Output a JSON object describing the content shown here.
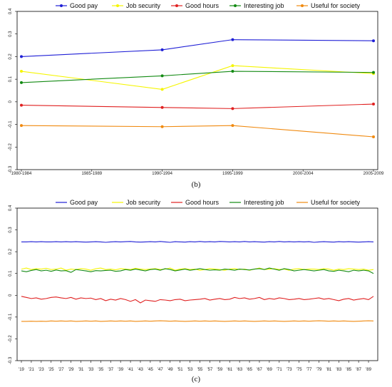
{
  "chart_data": [
    {
      "type": "line",
      "caption": "(b)",
      "categories": [
        "1980-1984",
        "1985-1989",
        "1990-1994",
        "1995-1999",
        "2000-2004",
        "2005-2009"
      ],
      "yticks": [
        "0.4",
        "0.3",
        "0.2",
        "0.1",
        "0",
        "-0.1",
        "-0.2",
        "-0.3"
      ],
      "ylim": [
        -0.3,
        0.4
      ],
      "grid": false,
      "legend": "top",
      "series": [
        {
          "name": "Good pay",
          "color": "#1f1fd6",
          "x": [
            "1980-1984",
            "1990-1994",
            "1995-1999",
            "2005-2009"
          ],
          "values": [
            0.2,
            0.23,
            0.275,
            0.27
          ]
        },
        {
          "name": "Job security",
          "color": "#f5f500",
          "x": [
            "1980-1984",
            "1990-1994",
            "1995-1999",
            "2005-2009"
          ],
          "values": [
            0.135,
            0.055,
            0.16,
            0.125
          ]
        },
        {
          "name": "Good hours",
          "color": "#e02020",
          "x": [
            "1980-1984",
            "1990-1994",
            "1995-1999",
            "2005-2009"
          ],
          "values": [
            -0.015,
            -0.025,
            -0.03,
            -0.01
          ]
        },
        {
          "name": "Interesting job",
          "color": "#138a13",
          "x": [
            "1980-1984",
            "1990-1994",
            "1995-1999",
            "2005-2009"
          ],
          "values": [
            0.085,
            0.115,
            0.135,
            0.13
          ]
        },
        {
          "name": "Useful for society",
          "color": "#f08a10",
          "x": [
            "1980-1984",
            "1990-1994",
            "1995-1999",
            "2005-2009"
          ],
          "values": [
            -0.105,
            -0.11,
            -0.105,
            -0.155
          ]
        }
      ]
    },
    {
      "type": "line",
      "caption": "(c)",
      "categories": [
        "'19",
        "'21",
        "'23",
        "'25",
        "'27",
        "'29",
        "'31",
        "'33",
        "'35",
        "'37",
        "'39",
        "'41",
        "'43",
        "'45",
        "'47",
        "'49",
        "'51",
        "'53",
        "'55",
        "'57",
        "'59",
        "'61",
        "'63",
        "'65",
        "'67",
        "'69",
        "'71",
        "'73",
        "'75",
        "'77",
        "'79",
        "'81",
        "'83",
        "'85",
        "'87",
        "'89"
      ],
      "x": [
        1919,
        1920,
        1921,
        1922,
        1923,
        1924,
        1925,
        1926,
        1927,
        1928,
        1929,
        1930,
        1931,
        1932,
        1933,
        1934,
        1935,
        1936,
        1937,
        1938,
        1939,
        1940,
        1941,
        1942,
        1943,
        1944,
        1945,
        1946,
        1947,
        1948,
        1949,
        1950,
        1951,
        1952,
        1953,
        1954,
        1955,
        1956,
        1957,
        1958,
        1959,
        1960,
        1961,
        1962,
        1963,
        1964,
        1965,
        1966,
        1967,
        1968,
        1969,
        1970,
        1971,
        1972,
        1973,
        1974,
        1975,
        1976,
        1977,
        1978,
        1979,
        1980,
        1981,
        1982,
        1983,
        1984,
        1985,
        1986,
        1987,
        1988,
        1989,
        1990
      ],
      "yticks": [
        "0.4",
        "0.3",
        "0.2",
        "0.1",
        "0",
        "-0.1",
        "-0.2",
        "-0.3"
      ],
      "ylim": [
        -0.3,
        0.4
      ],
      "grid": false,
      "legend": "top",
      "series": [
        {
          "name": "Good pay",
          "color": "#1f1fd6",
          "values": [
            0.245,
            0.245,
            0.246,
            0.245,
            0.246,
            0.245,
            0.245,
            0.246,
            0.245,
            0.246,
            0.245,
            0.246,
            0.245,
            0.244,
            0.245,
            0.246,
            0.245,
            0.243,
            0.245,
            0.246,
            0.245,
            0.246,
            0.247,
            0.245,
            0.244,
            0.245,
            0.246,
            0.245,
            0.247,
            0.245,
            0.243,
            0.246,
            0.245,
            0.244,
            0.246,
            0.245,
            0.247,
            0.245,
            0.246,
            0.245,
            0.247,
            0.246,
            0.245,
            0.246,
            0.245,
            0.247,
            0.245,
            0.246,
            0.245,
            0.244,
            0.246,
            0.245,
            0.247,
            0.245,
            0.246,
            0.245,
            0.246,
            0.245,
            0.246,
            0.243,
            0.245,
            0.246,
            0.245,
            0.244,
            0.246,
            0.245,
            0.246,
            0.245,
            0.244,
            0.245,
            0.246,
            0.245
          ]
        },
        {
          "name": "Job security",
          "color": "#f5f500",
          "values": [
            0.12,
            0.125,
            0.118,
            0.122,
            0.12,
            0.124,
            0.118,
            0.12,
            0.125,
            0.115,
            0.12,
            0.118,
            0.122,
            0.12,
            0.115,
            0.122,
            0.125,
            0.118,
            0.12,
            0.117,
            0.122,
            0.12,
            0.118,
            0.124,
            0.12,
            0.118,
            0.12,
            0.122,
            0.118,
            0.12,
            0.125,
            0.115,
            0.12,
            0.122,
            0.118,
            0.12,
            0.115,
            0.118,
            0.122,
            0.12,
            0.118,
            0.115,
            0.12,
            0.122,
            0.118,
            0.12,
            0.115,
            0.12,
            0.125,
            0.118,
            0.12,
            0.122,
            0.118,
            0.12,
            0.115,
            0.12,
            0.122,
            0.118,
            0.12,
            0.12,
            0.118,
            0.122,
            0.12,
            0.115,
            0.12,
            0.118,
            0.122,
            0.12,
            0.118,
            0.12,
            0.115,
            0.118
          ]
        },
        {
          "name": "Good hours",
          "color": "#e02020",
          "values": [
            -0.005,
            -0.01,
            -0.015,
            -0.012,
            -0.018,
            -0.015,
            -0.01,
            -0.008,
            -0.012,
            -0.015,
            -0.01,
            -0.018,
            -0.012,
            -0.015,
            -0.013,
            -0.02,
            -0.015,
            -0.025,
            -0.018,
            -0.022,
            -0.015,
            -0.02,
            -0.028,
            -0.02,
            -0.035,
            -0.022,
            -0.025,
            -0.028,
            -0.02,
            -0.022,
            -0.025,
            -0.02,
            -0.018,
            -0.025,
            -0.022,
            -0.02,
            -0.018,
            -0.015,
            -0.022,
            -0.018,
            -0.015,
            -0.02,
            -0.018,
            -0.01,
            -0.015,
            -0.012,
            -0.018,
            -0.015,
            -0.01,
            -0.02,
            -0.015,
            -0.018,
            -0.012,
            -0.015,
            -0.02,
            -0.018,
            -0.015,
            -0.02,
            -0.018,
            -0.015,
            -0.012,
            -0.018,
            -0.015,
            -0.02,
            -0.025,
            -0.018,
            -0.015,
            -0.022,
            -0.018,
            -0.015,
            -0.02,
            -0.005
          ]
        },
        {
          "name": "Interesting job",
          "color": "#138a13",
          "values": [
            0.112,
            0.108,
            0.114,
            0.118,
            0.112,
            0.115,
            0.11,
            0.116,
            0.112,
            0.113,
            0.105,
            0.118,
            0.115,
            0.112,
            0.108,
            0.113,
            0.112,
            0.114,
            0.115,
            0.11,
            0.112,
            0.118,
            0.115,
            0.12,
            0.116,
            0.112,
            0.118,
            0.12,
            0.115,
            0.122,
            0.118,
            0.112,
            0.116,
            0.12,
            0.115,
            0.118,
            0.122,
            0.118,
            0.115,
            0.117,
            0.115,
            0.12,
            0.118,
            0.115,
            0.12,
            0.118,
            0.116,
            0.12,
            0.122,
            0.118,
            0.125,
            0.12,
            0.115,
            0.122,
            0.118,
            0.112,
            0.115,
            0.118,
            0.115,
            0.112,
            0.115,
            0.118,
            0.112,
            0.11,
            0.115,
            0.112,
            0.108,
            0.115,
            0.112,
            0.115,
            0.112,
            0.1
          ]
        },
        {
          "name": "Useful for society",
          "color": "#f08a10",
          "values": [
            -0.12,
            -0.12,
            -0.119,
            -0.12,
            -0.119,
            -0.12,
            -0.118,
            -0.119,
            -0.118,
            -0.119,
            -0.118,
            -0.12,
            -0.119,
            -0.118,
            -0.119,
            -0.118,
            -0.12,
            -0.119,
            -0.118,
            -0.119,
            -0.118,
            -0.119,
            -0.118,
            -0.12,
            -0.119,
            -0.118,
            -0.119,
            -0.118,
            -0.117,
            -0.118,
            -0.119,
            -0.118,
            -0.119,
            -0.12,
            -0.119,
            -0.118,
            -0.119,
            -0.118,
            -0.119,
            -0.118,
            -0.119,
            -0.12,
            -0.119,
            -0.118,
            -0.119,
            -0.118,
            -0.119,
            -0.12,
            -0.119,
            -0.118,
            -0.119,
            -0.118,
            -0.119,
            -0.12,
            -0.119,
            -0.118,
            -0.119,
            -0.118,
            -0.119,
            -0.118,
            -0.117,
            -0.118,
            -0.119,
            -0.118,
            -0.119,
            -0.118,
            -0.119,
            -0.12,
            -0.119,
            -0.118,
            -0.117,
            -0.118
          ]
        }
      ]
    }
  ]
}
